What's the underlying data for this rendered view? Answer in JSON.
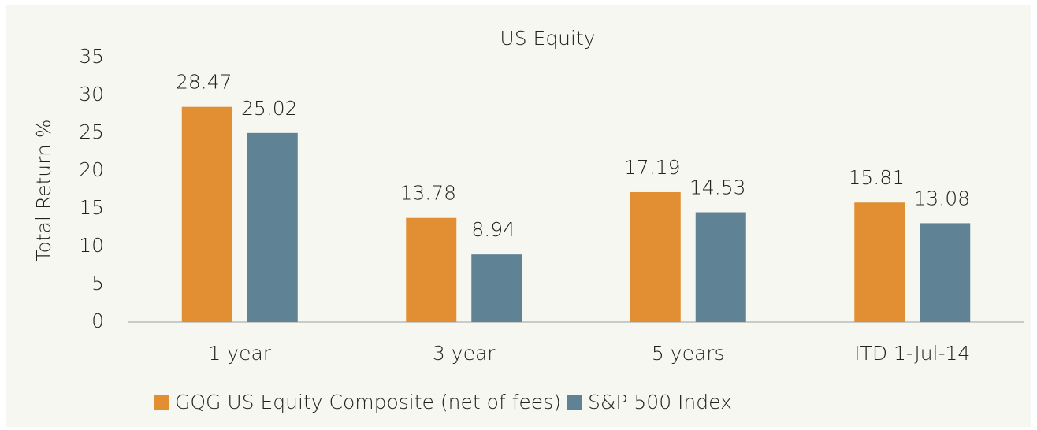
{
  "chart_data": {
    "type": "bar",
    "title": "US Equity",
    "y_label": "Total Return %",
    "categories": [
      "1 year",
      "3 year",
      "5 years",
      "ITD 1-Jul-14"
    ],
    "series": [
      {
        "name": "GQG US Equity Composite (net of fees)",
        "color": "#e28f33",
        "values": [
          28.47,
          13.78,
          17.19,
          15.81
        ]
      },
      {
        "name": "S&P 500 Index",
        "color": "#5f8295",
        "values": [
          25.02,
          8.94,
          14.53,
          13.08
        ]
      }
    ],
    "ylim": [
      0,
      35
    ],
    "yticks": [
      0,
      5,
      10,
      15,
      20,
      25,
      30,
      35
    ],
    "grid": false,
    "legend": "bottom"
  }
}
